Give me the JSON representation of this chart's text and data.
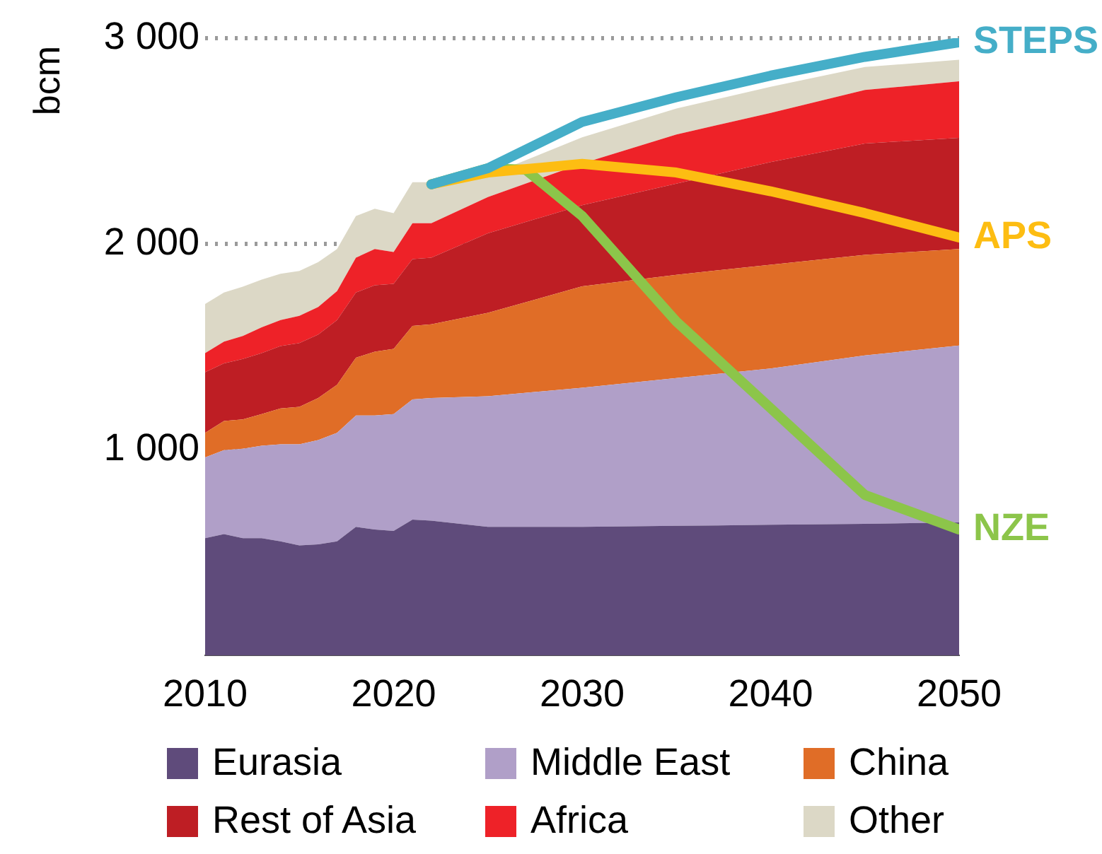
{
  "chart_data": {
    "type": "area",
    "ylabel": "bcm",
    "stacked": true,
    "x": [
      2010,
      2011,
      2012,
      2013,
      2014,
      2015,
      2016,
      2017,
      2018,
      2019,
      2020,
      2021,
      2022,
      2025,
      2030,
      2035,
      2040,
      2045,
      2050
    ],
    "series": [
      {
        "name": "Eurasia",
        "color": "#5f4b7b",
        "values": [
          570,
          590,
          570,
          570,
          555,
          535,
          540,
          555,
          625,
          612,
          605,
          660,
          655,
          625,
          625,
          630,
          635,
          640,
          647
        ]
      },
      {
        "name": "Middle East",
        "color": "#b09fc8",
        "values": [
          393,
          408,
          435,
          449,
          471,
          491,
          507,
          527,
          541,
          554,
          568,
          584,
          596,
          635,
          676,
          718,
          760,
          818,
          859
        ]
      },
      {
        "name": "China",
        "color": "#e06d27",
        "values": [
          119,
          142,
          142,
          154,
          175,
          182,
          204,
          234,
          281,
          310,
          317,
          358,
          358,
          405,
          493,
          502,
          504,
          489,
          469
        ]
      },
      {
        "name": "Rest of Asia",
        "color": "#be1e24",
        "values": [
          295,
          280,
          294,
          296,
          303,
          310,
          309,
          314,
          317,
          323,
          316,
          324,
          324,
          387,
          394,
          443,
          499,
          541,
          541
        ]
      },
      {
        "name": "Africa",
        "color": "#ee2228",
        "values": [
          92,
          105,
          112,
          126,
          126,
          133,
          134,
          141,
          169,
          176,
          155,
          175,
          168,
          176,
          203,
          239,
          239,
          260,
          274
        ]
      },
      {
        "name": "Other",
        "color": "#dcd8c6",
        "values": [
          239,
          239,
          239,
          232,
          225,
          218,
          218,
          204,
          203,
          196,
          189,
          199,
          199,
          105,
          127,
          126,
          127,
          112,
          105
        ]
      },
      {
        "name": "STEPS",
        "type": "line",
        "color": "#45aec8",
        "x": [
          2022,
          2025,
          2030,
          2035,
          2040,
          2045,
          2050
        ],
        "values": [
          2290,
          2368,
          2593,
          2713,
          2818,
          2909,
          2980
        ]
      },
      {
        "name": "APS",
        "type": "line",
        "color": "#fdbd12",
        "x": [
          2022,
          2025,
          2030,
          2035,
          2040,
          2045,
          2050
        ],
        "values": [
          2290,
          2347,
          2389,
          2347,
          2256,
          2150,
          2031
        ]
      },
      {
        "name": "NZE",
        "type": "line",
        "color": "#8cc54a",
        "x": [
          2022,
          2025,
          2027,
          2030,
          2035,
          2040,
          2045,
          2050
        ],
        "values": [
          2290,
          2368,
          2361,
          2136,
          1623,
          1202,
          780,
          612
        ]
      }
    ],
    "xlim": [
      2010,
      2050
    ],
    "xticks": [
      2010,
      2020,
      2030,
      2040,
      2050
    ],
    "ylim": [
      0,
      3000
    ],
    "yticks": [
      {
        "value": 1000,
        "label": "1 000"
      },
      {
        "value": 2000,
        "label": "2 000"
      },
      {
        "value": 3000,
        "label": "3 000"
      }
    ],
    "grid": "y",
    "legend": "bottom",
    "marker": "none",
    "line_style": "solid"
  }
}
